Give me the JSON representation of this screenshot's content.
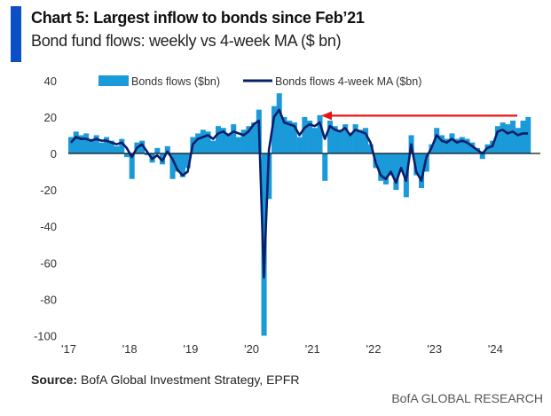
{
  "header": {
    "title": "Chart 5: Largest inflow to bonds since Feb’21",
    "subtitle": "Bond fund flows: weekly vs 4-week MA ($ bn)"
  },
  "footer": {
    "source_label": "Source:",
    "source_text": " BofA Global Investment Strategy, EPFR",
    "brand": "BofA GLOBAL RESEARCH"
  },
  "colors": {
    "accent": "#0b4fc6",
    "bars": "#1a9ad9",
    "ma_line": "#0a1f6b",
    "arrow": "#e8141b"
  },
  "chart_data": {
    "type": "bar+line",
    "title": "Chart 5: Largest inflow to bonds since Feb’21",
    "subtitle": "Bond fund flows: weekly vs 4-week MA ($ bn)",
    "xlabel": "",
    "ylabel": "",
    "ylim": [
      -100,
      40
    ],
    "yticks": [
      "40",
      "20",
      "0",
      "-20",
      "-40",
      "-60",
      "-80",
      "-100"
    ],
    "ytick_values": [
      40,
      20,
      0,
      -20,
      -40,
      -60,
      -80,
      -100
    ],
    "xticks": [
      "'17",
      "'18",
      "'19",
      "'20",
      "'21",
      "'22",
      "'23",
      "'24"
    ],
    "xtick_years": [
      2017,
      2018,
      2019,
      2020,
      2021,
      2022,
      2023,
      2024
    ],
    "x_start": "2017-01",
    "frequency": "monthly",
    "legend": "top",
    "annotation": {
      "type": "arrow",
      "level": 20,
      "from": "2024-07",
      "to": "2021-02"
    },
    "series": [
      {
        "name": "Bonds flows ($bn)",
        "type": "bar",
        "values": [
          9,
          12,
          10,
          11,
          8,
          10,
          6,
          9,
          7,
          4,
          8,
          -2,
          -14,
          6,
          7,
          -1,
          -5,
          3,
          -6,
          4,
          -14,
          -10,
          -13,
          -8,
          9,
          11,
          13,
          12,
          7,
          15,
          14,
          11,
          16,
          9,
          13,
          15,
          17,
          24,
          -100,
          -25,
          26,
          33,
          20,
          18,
          17,
          9,
          20,
          18,
          14,
          21,
          -15,
          18,
          15,
          13,
          16,
          11,
          16,
          13,
          14,
          5,
          -8,
          -15,
          -17,
          -12,
          -20,
          -10,
          -24,
          10,
          -12,
          -19,
          -10,
          5,
          14,
          10,
          8,
          11,
          8,
          9,
          8,
          6,
          3,
          -3,
          5,
          7,
          15,
          17,
          16,
          18,
          14,
          18,
          20
        ]
      },
      {
        "name": "Bonds flows 4-week MA ($bn)",
        "type": "line",
        "values": [
          6,
          9,
          8,
          8,
          7,
          8,
          7,
          7,
          6,
          5,
          6,
          3,
          -2,
          3,
          5,
          1,
          -3,
          -1,
          -4,
          1,
          -3,
          -9,
          -12,
          -10,
          5,
          8,
          9,
          10,
          8,
          11,
          12,
          10,
          12,
          11,
          10,
          12,
          16,
          18,
          -68,
          2,
          20,
          24,
          17,
          16,
          15,
          10,
          14,
          16,
          15,
          17,
          8,
          15,
          13,
          12,
          14,
          10,
          13,
          12,
          11,
          6,
          -5,
          -12,
          -14,
          -10,
          -16,
          -8,
          -15,
          5,
          -10,
          -15,
          -2,
          3,
          10,
          7,
          6,
          8,
          6,
          7,
          6,
          4,
          2,
          0,
          3,
          4,
          12,
          13,
          11,
          12,
          10,
          11,
          11
        ]
      }
    ]
  }
}
